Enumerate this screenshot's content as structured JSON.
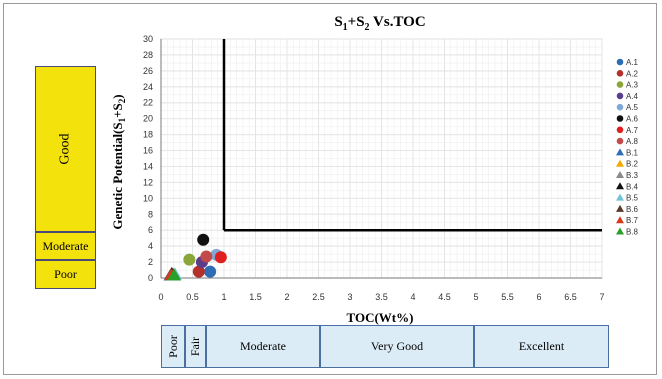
{
  "title_main": "S",
  "title_sub1": "1",
  "title_plus": "+S",
  "title_sub2": "2",
  "title_rest": " Vs.TOC",
  "ylabel_main": "Genetic Potential(S",
  "ylabel_sub1": "1",
  "ylabel_plus": "+S",
  "ylabel_sub2": "2",
  "ylabel_end": ")",
  "xlabel": "TOC(Wt%)",
  "side_bands": {
    "good": "Good",
    "moderate": "Moderate",
    "poor": "Poor"
  },
  "toc_bands": {
    "poor": "Poor",
    "fair": "Fair",
    "moderate": "Moderate",
    "very_good": "Very Good",
    "excellent": "Excellent"
  },
  "chart_data": {
    "type": "scatter",
    "xlim": [
      0,
      7
    ],
    "ylim": [
      0,
      30
    ],
    "xticks": [
      "0",
      "0.5",
      "1",
      "1.5",
      "2",
      "2.5",
      "3",
      "3.5",
      "4",
      "4.5",
      "5",
      "5.5",
      "6",
      "6.5",
      "7"
    ],
    "yticks": [
      "0",
      "2",
      "4",
      "6",
      "8",
      "10",
      "12",
      "14",
      "16",
      "18",
      "20",
      "22",
      "24",
      "26",
      "28",
      "30"
    ],
    "grid": true,
    "legend_position": "right",
    "threshold_lines": [
      {
        "x": 1,
        "y_from": 6,
        "y_to": 30
      },
      {
        "y": 6,
        "x_from": 1,
        "x_to": 7
      }
    ],
    "series": [
      {
        "name": "A.1",
        "marker": "circle",
        "color": "#2e6db4",
        "x": 0.78,
        "y": 0.8
      },
      {
        "name": "A.2",
        "marker": "circle",
        "color": "#b5302b",
        "x": 0.6,
        "y": 0.8
      },
      {
        "name": "A.3",
        "marker": "circle",
        "color": "#8aa63a",
        "x": 0.45,
        "y": 2.3
      },
      {
        "name": "A.4",
        "marker": "circle",
        "color": "#5c3d8a",
        "x": 0.65,
        "y": 2.0
      },
      {
        "name": "A.5",
        "marker": "circle",
        "color": "#7fa8d6",
        "x": 0.88,
        "y": 2.9
      },
      {
        "name": "A.6",
        "marker": "circle",
        "color": "#111111",
        "x": 0.67,
        "y": 4.8
      },
      {
        "name": "A.7",
        "marker": "circle",
        "color": "#e02020",
        "x": 0.95,
        "y": 2.6
      },
      {
        "name": "A.8",
        "marker": "circle",
        "color": "#c24a4a",
        "x": 0.72,
        "y": 2.7
      },
      {
        "name": "B.1",
        "marker": "triangle",
        "color": "#2e6db4",
        "x": 0.15,
        "y": 0.3
      },
      {
        "name": "B.2",
        "marker": "triangle",
        "color": "#f2a900",
        "x": 0.18,
        "y": 0.4
      },
      {
        "name": "B.3",
        "marker": "triangle",
        "color": "#8a8a8a",
        "x": 0.2,
        "y": 0.35
      },
      {
        "name": "B.4",
        "marker": "triangle",
        "color": "#111111",
        "x": 0.17,
        "y": 0.5
      },
      {
        "name": "B.5",
        "marker": "triangle",
        "color": "#6fc3d8",
        "x": 0.22,
        "y": 0.45
      },
      {
        "name": "B.6",
        "marker": "triangle",
        "color": "#5a3a2a",
        "x": 0.19,
        "y": 0.4
      },
      {
        "name": "B.7",
        "marker": "triangle",
        "color": "#d43a1a",
        "x": 0.16,
        "y": 0.35
      },
      {
        "name": "B.8",
        "marker": "triangle",
        "color": "#2aa02a",
        "x": 0.21,
        "y": 0.3
      }
    ]
  }
}
